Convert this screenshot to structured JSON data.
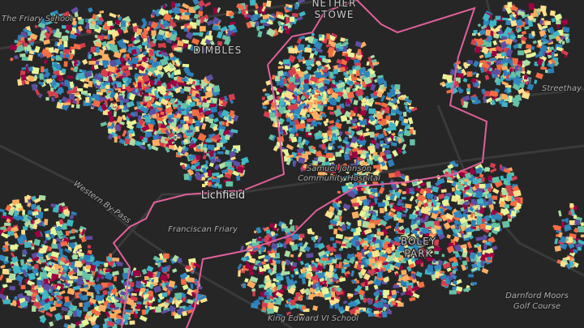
{
  "map": {
    "labels": {
      "friary_school": "The Friary School",
      "nether_stowe": [
        "NETHER",
        "STOWE"
      ],
      "dimbles": "DIMBLES",
      "lichfield": "Lichfield",
      "hospital": [
        "Samuel Johnson",
        "Community Hospital"
      ],
      "western_bypass": "Western By-Pass",
      "franciscan_friary": "Franciscan Friary",
      "boley_park": [
        "BOLEY",
        "PARK"
      ],
      "golf_course": [
        "Darnford Moors",
        "Golf Course"
      ],
      "king_edward": "King Edward VI School",
      "streethay": "Streethay"
    }
  }
}
